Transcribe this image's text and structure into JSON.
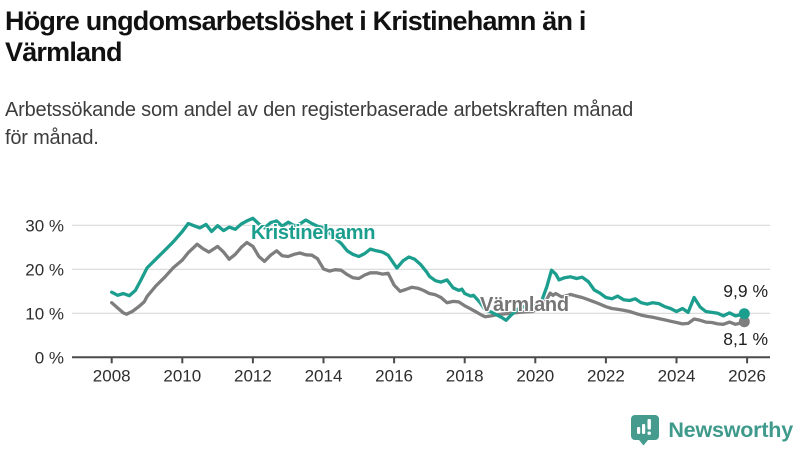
{
  "header": {
    "title_lines": [
      "Högre ungdomsarbetslöshet i Kristinehamn än i",
      "Värmland"
    ],
    "subtitle_lines": [
      "Arbetssökande som andel av den registerbaserade arbetskraften månad",
      "för månad."
    ]
  },
  "branding": {
    "logo_text": "Newsworthy",
    "logo_color": "#3f9a8c"
  },
  "chart_data": {
    "type": "line",
    "title": "Högre ungdomsarbetslöshet i Kristinehamn än i Värmland",
    "subtitle": "Arbetssökande som andel av den registerbaserade arbetskraften månad för månad.",
    "unit": "%",
    "grid": true,
    "legend_position": "inline-labels",
    "x_axis": {
      "ticks": [
        2008,
        2010,
        2012,
        2014,
        2016,
        2018,
        2020,
        2022,
        2024,
        2026
      ],
      "tick_labels": [
        "2008",
        "2010",
        "2012",
        "2014",
        "2016",
        "2018",
        "2020",
        "2022",
        "2024",
        "2026"
      ],
      "range": [
        2007.9,
        2026.6
      ]
    },
    "y_axis": {
      "ticks": [
        0,
        10,
        20,
        30
      ],
      "tick_labels": [
        "0 %",
        "10 %",
        "20 %",
        "30 %"
      ],
      "range": [
        0,
        33.5
      ]
    },
    "style": {
      "grid_color": "#d8d8d8",
      "axis_color": "#4a4a4a",
      "tick_label_color": "#2e2e2e"
    },
    "series": [
      {
        "name": "Kristinehamn",
        "color": "#1b9e8e",
        "end_label": "9,9 %",
        "end_value": 9.9,
        "points": [
          [
            2008.0,
            14.8
          ],
          [
            2008.17,
            14.1
          ],
          [
            2008.33,
            14.5
          ],
          [
            2008.5,
            14.0
          ],
          [
            2008.67,
            15.2
          ],
          [
            2008.83,
            17.6
          ],
          [
            2009.0,
            20.3
          ],
          [
            2009.25,
            22.3
          ],
          [
            2009.5,
            24.3
          ],
          [
            2009.75,
            26.3
          ],
          [
            2010.0,
            28.6
          ],
          [
            2010.17,
            30.4
          ],
          [
            2010.33,
            29.9
          ],
          [
            2010.5,
            29.4
          ],
          [
            2010.67,
            30.2
          ],
          [
            2010.83,
            28.6
          ],
          [
            2011.0,
            29.9
          ],
          [
            2011.17,
            28.8
          ],
          [
            2011.33,
            29.6
          ],
          [
            2011.5,
            29.1
          ],
          [
            2011.67,
            30.3
          ],
          [
            2011.83,
            31.0
          ],
          [
            2012.0,
            31.6
          ],
          [
            2012.17,
            30.3
          ],
          [
            2012.33,
            29.4
          ],
          [
            2012.5,
            30.6
          ],
          [
            2012.67,
            31.0
          ],
          [
            2012.83,
            29.8
          ],
          [
            2013.0,
            30.7
          ],
          [
            2013.17,
            29.9
          ],
          [
            2013.33,
            30.3
          ],
          [
            2013.5,
            31.2
          ],
          [
            2013.67,
            30.4
          ],
          [
            2013.83,
            29.8
          ],
          [
            2014.0,
            29.4
          ],
          [
            2014.17,
            28.3
          ],
          [
            2014.33,
            27.0
          ],
          [
            2014.5,
            25.9
          ],
          [
            2014.67,
            24.2
          ],
          [
            2014.83,
            23.4
          ],
          [
            2015.0,
            22.9
          ],
          [
            2015.17,
            23.6
          ],
          [
            2015.33,
            24.6
          ],
          [
            2015.5,
            24.2
          ],
          [
            2015.67,
            23.9
          ],
          [
            2015.83,
            23.2
          ],
          [
            2016.0,
            21.2
          ],
          [
            2016.08,
            20.3
          ],
          [
            2016.25,
            21.9
          ],
          [
            2016.42,
            22.8
          ],
          [
            2016.58,
            22.3
          ],
          [
            2016.75,
            21.1
          ],
          [
            2016.92,
            19.4
          ],
          [
            2017.0,
            18.4
          ],
          [
            2017.17,
            17.4
          ],
          [
            2017.33,
            17.1
          ],
          [
            2017.5,
            17.6
          ],
          [
            2017.67,
            15.8
          ],
          [
            2017.83,
            15.2
          ],
          [
            2017.92,
            15.5
          ],
          [
            2018.0,
            14.5
          ],
          [
            2018.17,
            13.9
          ],
          [
            2018.25,
            14.1
          ],
          [
            2018.42,
            12.6
          ],
          [
            2018.58,
            10.8
          ],
          [
            2018.75,
            10.3
          ],
          [
            2018.92,
            9.6
          ],
          [
            2019.08,
            8.9
          ],
          [
            2019.17,
            8.4
          ],
          [
            2019.33,
            9.7
          ],
          [
            2019.5,
            10.9
          ],
          [
            2019.67,
            11.5
          ],
          [
            2019.83,
            11.3
          ],
          [
            2020.0,
            11.8
          ],
          [
            2020.17,
            12.6
          ],
          [
            2020.33,
            16.1
          ],
          [
            2020.46,
            19.8
          ],
          [
            2020.58,
            18.9
          ],
          [
            2020.67,
            17.6
          ],
          [
            2020.83,
            18.1
          ],
          [
            2021.0,
            18.3
          ],
          [
            2021.17,
            17.9
          ],
          [
            2021.33,
            18.2
          ],
          [
            2021.5,
            17.2
          ],
          [
            2021.67,
            15.3
          ],
          [
            2021.83,
            14.6
          ],
          [
            2022.0,
            13.6
          ],
          [
            2022.17,
            13.3
          ],
          [
            2022.33,
            13.9
          ],
          [
            2022.5,
            13.1
          ],
          [
            2022.67,
            12.9
          ],
          [
            2022.83,
            13.3
          ],
          [
            2023.0,
            12.4
          ],
          [
            2023.17,
            12.1
          ],
          [
            2023.33,
            12.4
          ],
          [
            2023.5,
            12.2
          ],
          [
            2023.67,
            11.5
          ],
          [
            2023.83,
            11.1
          ],
          [
            2024.0,
            10.4
          ],
          [
            2024.17,
            11.1
          ],
          [
            2024.33,
            10.2
          ],
          [
            2024.5,
            13.6
          ],
          [
            2024.67,
            11.4
          ],
          [
            2024.83,
            10.4
          ],
          [
            2025.0,
            10.2
          ],
          [
            2025.17,
            10.0
          ],
          [
            2025.33,
            9.4
          ],
          [
            2025.5,
            10.1
          ],
          [
            2025.67,
            9.4
          ],
          [
            2025.83,
            9.7
          ],
          [
            2025.92,
            9.9
          ]
        ]
      },
      {
        "name": "Värmland",
        "color": "#7e7e7e",
        "end_label": "8,1 %",
        "end_value": 8.1,
        "points": [
          [
            2008.0,
            12.4
          ],
          [
            2008.17,
            11.2
          ],
          [
            2008.33,
            10.1
          ],
          [
            2008.42,
            9.8
          ],
          [
            2008.58,
            10.4
          ],
          [
            2008.75,
            11.4
          ],
          [
            2008.92,
            12.6
          ],
          [
            2009.0,
            13.8
          ],
          [
            2009.25,
            16.2
          ],
          [
            2009.5,
            18.2
          ],
          [
            2009.75,
            20.4
          ],
          [
            2010.0,
            22.1
          ],
          [
            2010.17,
            23.8
          ],
          [
            2010.33,
            25.0
          ],
          [
            2010.42,
            25.7
          ],
          [
            2010.58,
            24.7
          ],
          [
            2010.75,
            23.9
          ],
          [
            2010.92,
            24.8
          ],
          [
            2011.0,
            25.2
          ],
          [
            2011.17,
            23.9
          ],
          [
            2011.33,
            22.3
          ],
          [
            2011.5,
            23.4
          ],
          [
            2011.67,
            25.0
          ],
          [
            2011.83,
            26.1
          ],
          [
            2012.0,
            25.2
          ],
          [
            2012.17,
            22.9
          ],
          [
            2012.33,
            21.8
          ],
          [
            2012.5,
            23.2
          ],
          [
            2012.67,
            24.2
          ],
          [
            2012.83,
            23.1
          ],
          [
            2013.0,
            22.9
          ],
          [
            2013.17,
            23.4
          ],
          [
            2013.33,
            23.7
          ],
          [
            2013.5,
            23.3
          ],
          [
            2013.67,
            23.2
          ],
          [
            2013.83,
            22.4
          ],
          [
            2014.0,
            20.1
          ],
          [
            2014.17,
            19.6
          ],
          [
            2014.33,
            19.9
          ],
          [
            2014.5,
            19.8
          ],
          [
            2014.67,
            18.8
          ],
          [
            2014.83,
            18.1
          ],
          [
            2015.0,
            17.9
          ],
          [
            2015.17,
            18.7
          ],
          [
            2015.33,
            19.2
          ],
          [
            2015.5,
            19.2
          ],
          [
            2015.67,
            18.9
          ],
          [
            2015.83,
            19.1
          ],
          [
            2016.0,
            16.4
          ],
          [
            2016.17,
            15.0
          ],
          [
            2016.33,
            15.4
          ],
          [
            2016.5,
            15.9
          ],
          [
            2016.67,
            15.7
          ],
          [
            2016.83,
            15.2
          ],
          [
            2017.0,
            14.5
          ],
          [
            2017.17,
            14.2
          ],
          [
            2017.33,
            13.6
          ],
          [
            2017.5,
            12.4
          ],
          [
            2017.67,
            12.7
          ],
          [
            2017.83,
            12.6
          ],
          [
            2018.0,
            11.7
          ],
          [
            2018.17,
            11.0
          ],
          [
            2018.33,
            10.3
          ],
          [
            2018.5,
            9.5
          ],
          [
            2018.58,
            9.2
          ],
          [
            2018.75,
            9.4
          ],
          [
            2018.92,
            9.7
          ],
          [
            2019.17,
            9.9
          ],
          [
            2019.42,
            10.1
          ],
          [
            2019.67,
            10.3
          ],
          [
            2019.92,
            10.4
          ],
          [
            2020.17,
            11.3
          ],
          [
            2020.33,
            13.2
          ],
          [
            2020.42,
            14.6
          ],
          [
            2020.5,
            14.1
          ],
          [
            2020.58,
            14.5
          ],
          [
            2020.75,
            13.7
          ],
          [
            2020.92,
            14.1
          ],
          [
            2021.0,
            14.3
          ],
          [
            2021.17,
            13.9
          ],
          [
            2021.33,
            13.6
          ],
          [
            2021.5,
            13.1
          ],
          [
            2021.67,
            12.6
          ],
          [
            2021.83,
            12.1
          ],
          [
            2022.0,
            11.5
          ],
          [
            2022.17,
            11.1
          ],
          [
            2022.33,
            10.9
          ],
          [
            2022.5,
            10.7
          ],
          [
            2022.67,
            10.4
          ],
          [
            2022.83,
            10.0
          ],
          [
            2023.0,
            9.6
          ],
          [
            2023.17,
            9.3
          ],
          [
            2023.33,
            9.1
          ],
          [
            2023.5,
            8.8
          ],
          [
            2023.67,
            8.5
          ],
          [
            2023.83,
            8.2
          ],
          [
            2024.0,
            7.9
          ],
          [
            2024.17,
            7.6
          ],
          [
            2024.33,
            7.7
          ],
          [
            2024.5,
            8.7
          ],
          [
            2024.67,
            8.4
          ],
          [
            2024.83,
            8.0
          ],
          [
            2025.0,
            7.9
          ],
          [
            2025.17,
            7.6
          ],
          [
            2025.33,
            7.5
          ],
          [
            2025.5,
            8.0
          ],
          [
            2025.67,
            7.5
          ],
          [
            2025.83,
            7.8
          ],
          [
            2025.92,
            8.1
          ]
        ]
      }
    ]
  }
}
